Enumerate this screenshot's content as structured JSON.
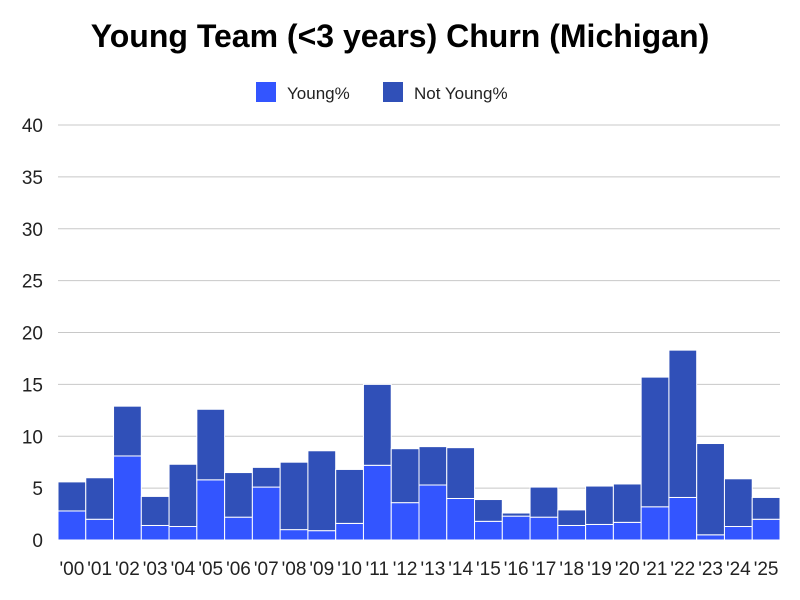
{
  "chart_data": {
    "type": "bar",
    "stacked": true,
    "title": "Young Team (<3 years) Churn (Michigan)",
    "xlabel": "",
    "ylabel": "",
    "categories": [
      "'00",
      "'01",
      "'02",
      "'03",
      "'04",
      "'05",
      "'06",
      "'07",
      "'08",
      "'09",
      "'10",
      "'11",
      "'12",
      "'13",
      "'14",
      "'15",
      "'16",
      "'17",
      "'18",
      "'19",
      "'20",
      "'21",
      "'22",
      "'23",
      "'24",
      "'25"
    ],
    "series": [
      {
        "name": "Young%",
        "color": "#3355ff",
        "values": [
          2.8,
          2.0,
          8.1,
          1.4,
          1.3,
          5.8,
          2.2,
          5.1,
          1.0,
          0.9,
          1.6,
          7.2,
          3.6,
          5.3,
          4.0,
          1.8,
          2.3,
          2.2,
          1.4,
          1.5,
          1.7,
          3.2,
          4.1,
          0.5,
          1.3,
          2.0
        ]
      },
      {
        "name": "Not Young%",
        "color": "#3050b8",
        "values": [
          2.8,
          4.0,
          4.8,
          2.8,
          6.0,
          6.8,
          4.3,
          1.9,
          6.5,
          7.7,
          5.2,
          7.8,
          5.2,
          3.7,
          4.9,
          2.1,
          0.3,
          2.9,
          1.5,
          3.7,
          3.7,
          12.5,
          14.2,
          8.8,
          4.6,
          2.1
        ]
      }
    ],
    "ylim": [
      0,
      40
    ],
    "yticks": [
      0,
      5,
      10,
      15,
      20,
      25,
      30,
      35,
      40
    ],
    "grid": true,
    "legend_position": "top"
  }
}
